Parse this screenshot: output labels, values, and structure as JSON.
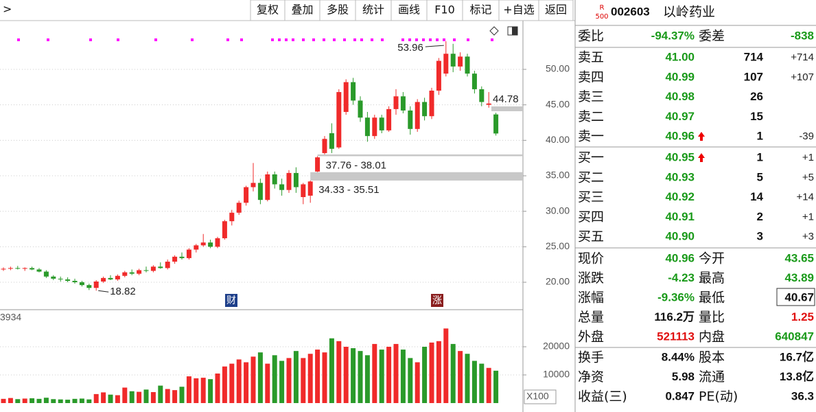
{
  "toolbar": {
    "back": ">",
    "buttons": [
      "复权",
      "叠加",
      "多股",
      "统计",
      "画线",
      "F10",
      "标记",
      "+自选",
      "返回"
    ]
  },
  "chart_data": {
    "type": "candlestick",
    "up_color": "#f02a2a",
    "down_color": "#2a9a2a",
    "candles": [
      [
        21.8,
        22.1,
        21.6,
        21.9
      ],
      [
        21.9,
        22.2,
        21.7,
        22.0
      ],
      [
        22.0,
        22.3,
        21.8,
        21.9
      ],
      [
        21.9,
        22.1,
        21.6,
        22.0
      ],
      [
        22.0,
        22.2,
        21.7,
        21.8
      ],
      [
        21.8,
        22.0,
        21.4,
        21.5
      ],
      [
        21.5,
        21.7,
        20.6,
        20.8
      ],
      [
        20.8,
        21.0,
        20.3,
        20.5
      ],
      [
        20.5,
        20.8,
        20.1,
        20.4
      ],
      [
        20.4,
        20.7,
        20.0,
        20.2
      ],
      [
        20.2,
        20.5,
        19.8,
        20.0
      ],
      [
        20.0,
        20.2,
        19.4,
        19.6
      ],
      [
        19.6,
        19.8,
        18.9,
        19.2
      ],
      [
        19.2,
        20.3,
        18.82,
        20.1
      ],
      [
        20.1,
        20.8,
        19.9,
        20.6
      ],
      [
        20.6,
        21.0,
        20.3,
        20.4
      ],
      [
        20.4,
        21.1,
        20.2,
        20.9
      ],
      [
        20.9,
        21.6,
        20.7,
        21.4
      ],
      [
        21.4,
        21.8,
        21.0,
        21.2
      ],
      [
        21.2,
        21.9,
        21.0,
        21.7
      ],
      [
        21.7,
        22.2,
        21.4,
        21.6
      ],
      [
        21.6,
        22.4,
        21.4,
        22.2
      ],
      [
        22.2,
        22.8,
        21.9,
        22.0
      ],
      [
        22.0,
        23.2,
        21.8,
        22.9
      ],
      [
        22.9,
        23.8,
        22.6,
        23.6
      ],
      [
        23.6,
        24.2,
        23.2,
        23.4
      ],
      [
        23.4,
        24.8,
        23.2,
        24.6
      ],
      [
        24.6,
        25.4,
        24.2,
        25.2
      ],
      [
        25.2,
        26.8,
        25.0,
        25.6
      ],
      [
        25.6,
        26.0,
        24.8,
        25.0
      ],
      [
        25.0,
        26.4,
        24.8,
        26.2
      ],
      [
        26.2,
        28.8,
        26.0,
        28.6
      ],
      [
        28.6,
        30.2,
        28.0,
        29.8
      ],
      [
        29.8,
        31.5,
        29.5,
        31.2
      ],
      [
        31.2,
        33.6,
        30.8,
        33.4
      ],
      [
        33.4,
        36.8,
        32.8,
        34.0
      ],
      [
        34.0,
        34.6,
        31.0,
        31.6
      ],
      [
        31.6,
        35.6,
        31.4,
        35.2
      ],
      [
        35.2,
        35.6,
        33.2,
        33.8
      ],
      [
        33.8,
        34.6,
        32.2,
        33.0
      ],
      [
        33.0,
        35.8,
        32.6,
        35.4
      ],
      [
        35.4,
        36.2,
        32.6,
        33.4
      ],
      [
        32.0,
        34.0,
        31.0,
        33.8
      ],
      [
        32.2,
        34.33,
        31.2,
        34.2
      ],
      [
        35.6,
        37.76,
        35.51,
        37.6
      ],
      [
        38.2,
        40.6,
        38.01,
        40.2
      ],
      [
        41.0,
        42.4,
        38.2,
        38.8
      ],
      [
        39.0,
        47.2,
        38.8,
        46.8
      ],
      [
        44.0,
        48.6,
        43.6,
        48.2
      ],
      [
        48.2,
        48.8,
        45.0,
        45.6
      ],
      [
        45.6,
        46.2,
        42.6,
        43.2
      ],
      [
        43.2,
        44.0,
        39.8,
        40.6
      ],
      [
        40.6,
        43.6,
        40.2,
        43.2
      ],
      [
        43.2,
        43.6,
        41.0,
        41.4
      ],
      [
        41.4,
        44.8,
        41.2,
        44.4
      ],
      [
        44.4,
        47.2,
        43.6,
        46.2
      ],
      [
        46.2,
        46.8,
        43.8,
        44.2
      ],
      [
        44.2,
        44.8,
        40.8,
        41.6
      ],
      [
        41.6,
        45.8,
        41.2,
        45.4
      ],
      [
        45.4,
        46.0,
        42.8,
        43.4
      ],
      [
        43.4,
        47.4,
        43.0,
        47.0
      ],
      [
        47.0,
        51.6,
        46.4,
        51.2
      ],
      [
        49.4,
        53.96,
        49.0,
        52.2
      ],
      [
        52.2,
        53.6,
        49.6,
        50.4
      ],
      [
        50.4,
        52.4,
        49.8,
        51.8
      ],
      [
        51.8,
        52.2,
        49.0,
        49.4
      ],
      [
        49.4,
        49.8,
        46.6,
        47.2
      ],
      [
        47.2,
        47.6,
        44.8,
        45.4
      ],
      [
        45.0,
        46.8,
        44.6,
        45.19
      ],
      [
        43.65,
        43.89,
        40.67,
        40.96
      ]
    ],
    "ylim": [
      16.23,
      56.87
    ],
    "yticks": [
      {
        "value": 20,
        "label": "20.00"
      },
      {
        "value": 25,
        "label": "25.00"
      },
      {
        "value": 30,
        "label": "30.00"
      },
      {
        "value": 35,
        "label": "35.00"
      },
      {
        "value": 40,
        "label": "40.00"
      },
      {
        "value": 45,
        "label": "45.00"
      },
      {
        "value": 50,
        "label": "50.00"
      }
    ],
    "extremes": [
      53.96,
      18.82
    ],
    "gaps": [
      {
        "value": [
          37.76,
          38.01
        ],
        "label": "37.76 - 38.01"
      },
      {
        "value": [
          34.33,
          35.51
        ],
        "label": "34.33 - 35.51"
      }
    ],
    "last_mark": 44.78,
    "events": [
      "财",
      "涨"
    ],
    "volume": [
      1500,
      1800,
      1400,
      1600,
      1700,
      1500,
      1900,
      1400,
      1300,
      1200,
      1500,
      1600,
      1300,
      3200,
      3800,
      3000,
      2800,
      5500,
      4200,
      4000,
      4800,
      3900,
      6200,
      5000,
      4600,
      5800,
      9500,
      8800,
      9000,
      8500,
      10500,
      13000,
      14000,
      15500,
      14500,
      16500,
      18000,
      14000,
      17000,
      15000,
      16000,
      18500,
      16000,
      17500,
      19000,
      18000,
      23000,
      22000,
      20000,
      19500,
      18500,
      17000,
      21000,
      19000,
      20000,
      21000,
      19000,
      16000,
      14500,
      20000,
      21500,
      22000,
      26500,
      21000,
      18500,
      17500,
      15000,
      14000,
      12500,
      11500
    ],
    "volume_ylim": [
      0,
      32200
    ],
    "volume_yticks": [
      10000,
      20000
    ],
    "volume_top_label": "3934",
    "volume_unit": "X100"
  },
  "quote": {
    "badge": [
      "R",
      "500"
    ],
    "code": "002603",
    "name": "以岭药业",
    "summary": [
      "委比",
      "-94.37%",
      "委差",
      "-838"
    ],
    "asks": [
      [
        "卖五",
        "41.00",
        "714",
        "+714"
      ],
      [
        "卖四",
        "40.99",
        "107",
        "+107"
      ],
      [
        "卖三",
        "40.98",
        "26"
      ],
      [
        "卖二",
        "40.97",
        "15"
      ],
      [
        "卖一",
        "40.96",
        "1",
        "-39"
      ]
    ],
    "bids": [
      [
        "买一",
        "40.95",
        "1",
        "+1"
      ],
      [
        "买二",
        "40.93",
        "5",
        "+5"
      ],
      [
        "买三",
        "40.92",
        "14",
        "+14"
      ],
      [
        "买四",
        "40.91",
        "2",
        "+1"
      ],
      [
        "买五",
        "40.90",
        "3",
        "+3"
      ]
    ],
    "stats": [
      [
        "现价",
        "40.96",
        "今开",
        "43.65"
      ],
      [
        "涨跌",
        "-4.23",
        "最高",
        "43.89"
      ],
      [
        "涨幅",
        "-9.36%",
        "最低",
        "40.67"
      ],
      [
        "总量",
        "116.2万",
        "量比",
        "1.25"
      ],
      [
        "外盘",
        "521113",
        "内盘",
        "640847"
      ]
    ],
    "fundamentals": [
      [
        "换手",
        "8.44%",
        "股本",
        "16.7亿"
      ],
      [
        "净资",
        "5.98",
        "流通",
        "13.8亿"
      ],
      [
        "收益(三)",
        "0.847",
        "PE(动)",
        "36.3"
      ]
    ]
  }
}
